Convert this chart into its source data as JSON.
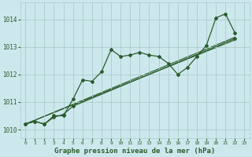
{
  "xlabel": "Graphe pression niveau de la mer (hPa)",
  "background_color": "#cde8ed",
  "grid_color": "#aacccc",
  "line_color": "#2a5c2a",
  "ylim": [
    1009.7,
    1014.6
  ],
  "xlim": [
    -0.5,
    23.5
  ],
  "yticks": [
    1010,
    1011,
    1012,
    1013,
    1014
  ],
  "xticks": [
    0,
    1,
    2,
    3,
    4,
    5,
    6,
    7,
    8,
    9,
    10,
    11,
    12,
    13,
    14,
    15,
    16,
    17,
    18,
    19,
    20,
    21,
    22,
    23
  ],
  "series1_x": [
    0,
    1,
    2,
    3,
    4,
    5,
    6,
    7,
    8,
    9,
    10,
    11,
    12,
    13,
    14,
    15,
    16,
    17,
    18,
    19,
    20,
    21,
    22
  ],
  "series1_y": [
    1010.2,
    1010.3,
    1010.2,
    1010.5,
    1010.5,
    1011.1,
    1011.8,
    1011.75,
    1012.1,
    1012.9,
    1012.65,
    1012.7,
    1012.8,
    1012.7,
    1012.65,
    1012.4,
    1012.0,
    1012.25,
    1012.65,
    1013.05,
    1014.05,
    1014.2,
    1013.5
  ],
  "series2_x": [
    0,
    1,
    2,
    3,
    4,
    5,
    22
  ],
  "series2_y": [
    1010.2,
    1010.3,
    1010.2,
    1010.45,
    1010.55,
    1010.85,
    1013.3
  ],
  "series3_x": [
    0,
    22
  ],
  "series3_y": [
    1010.2,
    1013.25
  ],
  "series4_x": [
    0,
    22
  ],
  "series4_y": [
    1010.2,
    1013.35
  ]
}
